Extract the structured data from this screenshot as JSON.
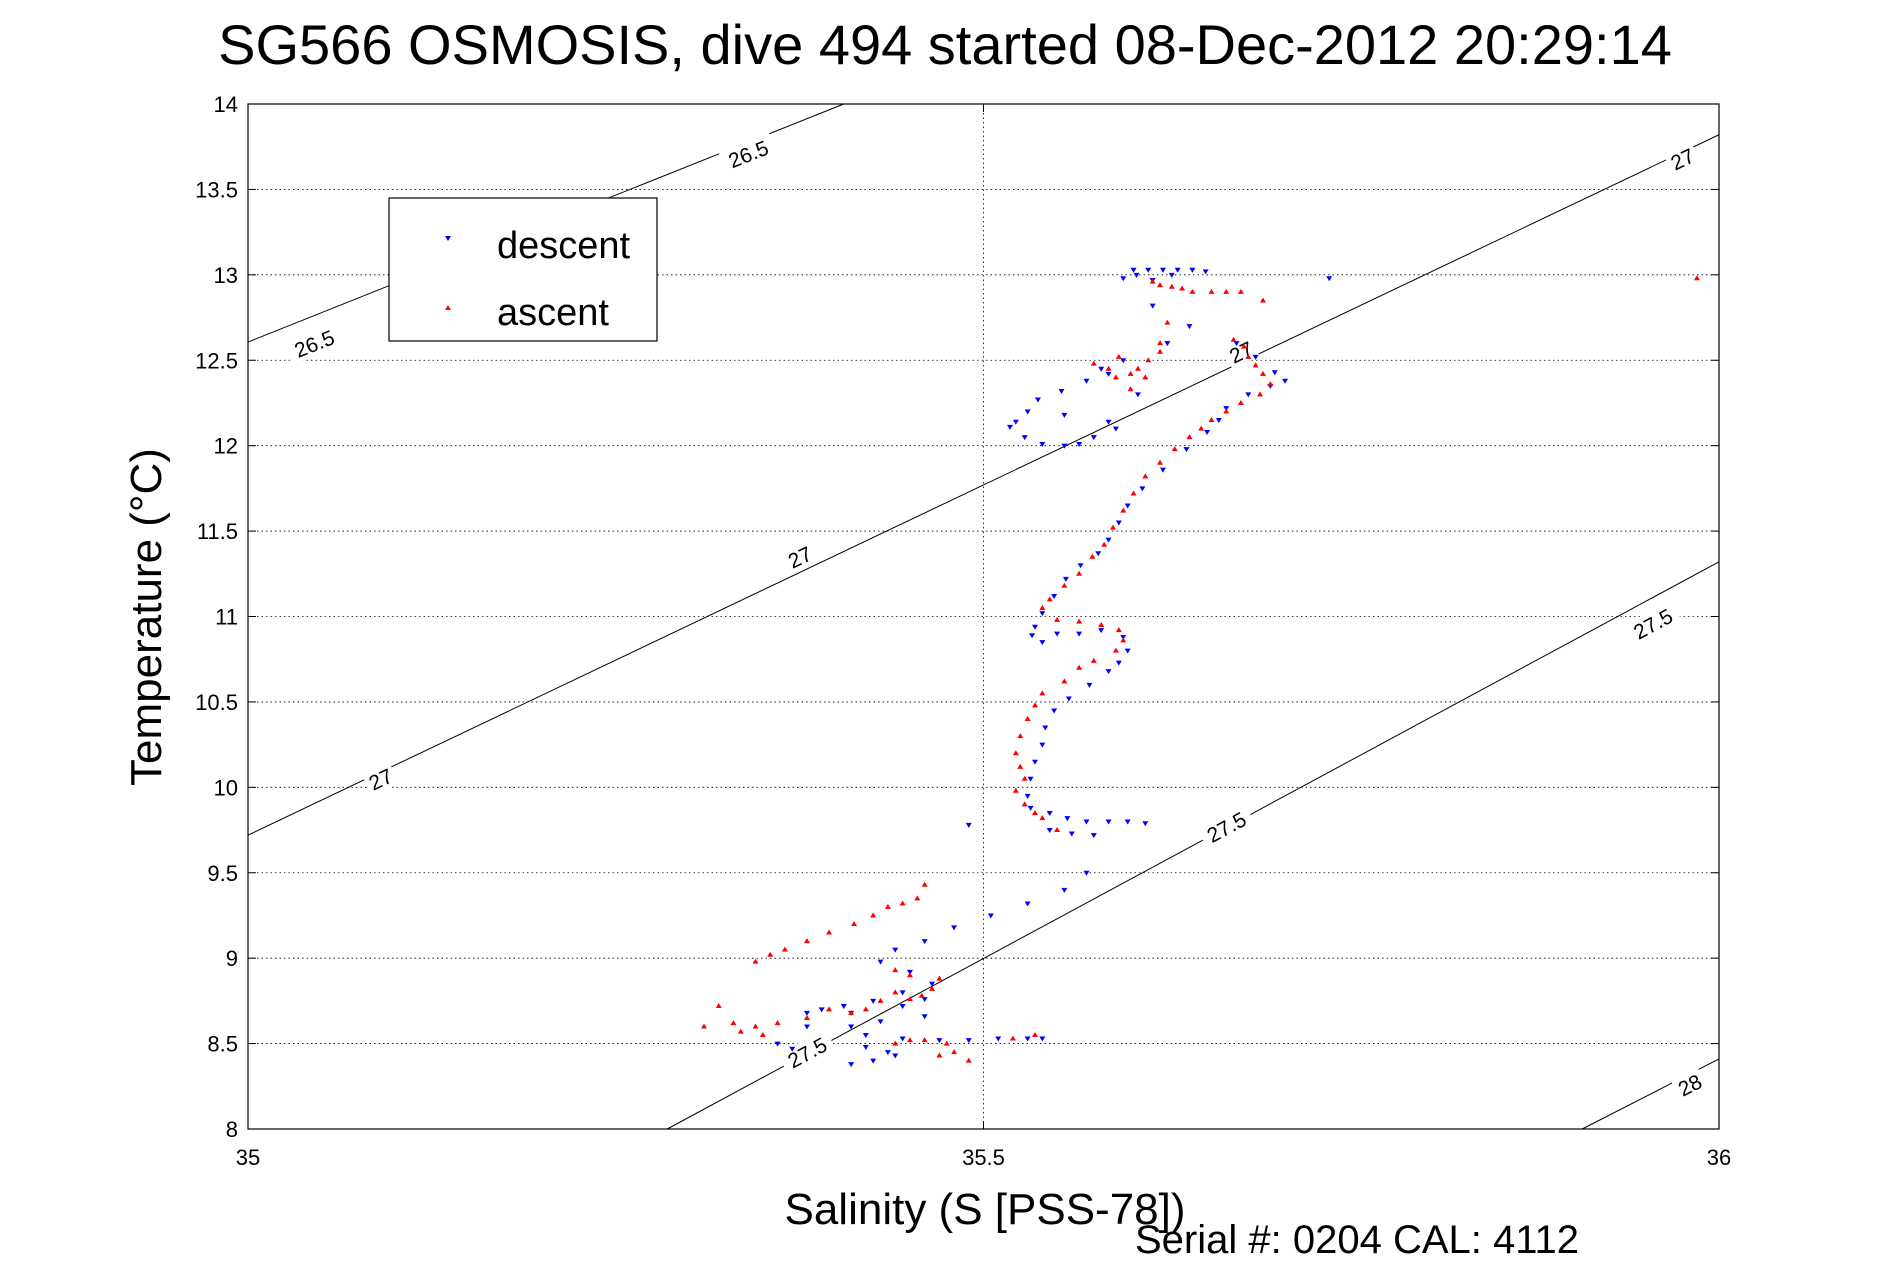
{
  "chart_data": {
    "type": "scatter",
    "title": "SG566 OSMOSIS, dive 494 started 08-Dec-2012 20:29:14",
    "xlabel": "Salinity (S [PSS-78])",
    "ylabel": "Temperature (°C)",
    "footer": "Serial #: 0204  CAL: 4112",
    "xlim": [
      35,
      36
    ],
    "ylim": [
      8,
      14
    ],
    "xticks": [
      "35",
      "35.5",
      "36"
    ],
    "yticks": [
      "8",
      "8.5",
      "9",
      "9.5",
      "10",
      "10.5",
      "11",
      "11.5",
      "12",
      "12.5",
      "13",
      "13.5",
      "14"
    ],
    "grid": true,
    "legend_position": "top-left",
    "contour_labels": [
      {
        "text": "26.5",
        "x": 35.34,
        "y": 13.71
      },
      {
        "text": "26.5",
        "x": 35.045,
        "y": 12.6
      },
      {
        "text": "27",
        "x": 34.09,
        "y": 10.05,
        "x_actual": 35.09
      },
      {
        "text": "27",
        "x": 35.375,
        "y": 11.35
      },
      {
        "text": "27",
        "x": 35.675,
        "y": 12.55
      },
      {
        "text": "27",
        "x": 35.975,
        "y": 13.68
      },
      {
        "text": "27.5",
        "x": 35.38,
        "y": 8.45
      },
      {
        "text": "27.5",
        "x": 35.665,
        "y": 9.77
      },
      {
        "text": "27.5",
        "x": 35.955,
        "y": 10.96
      },
      {
        "text": "28",
        "x": 35.98,
        "y": 8.26
      }
    ],
    "series": [
      {
        "name": "descent",
        "color": "#0000ff",
        "marker": "triangle-down",
        "points": [
          [
            35.602,
            13.03
          ],
          [
            35.612,
            13.03
          ],
          [
            35.622,
            13.03
          ],
          [
            35.632,
            13.03
          ],
          [
            35.642,
            13.03
          ],
          [
            35.651,
            13.02
          ],
          [
            35.604,
            13.0
          ],
          [
            35.628,
            13.0
          ],
          [
            35.595,
            12.98
          ],
          [
            35.615,
            12.97
          ],
          [
            35.735,
            12.98
          ],
          [
            35.615,
            12.82
          ],
          [
            35.64,
            12.7
          ],
          [
            35.625,
            12.6
          ],
          [
            35.58,
            12.45
          ],
          [
            35.595,
            12.5
          ],
          [
            35.585,
            12.42
          ],
          [
            35.57,
            12.38
          ],
          [
            35.553,
            12.32
          ],
          [
            35.537,
            12.27
          ],
          [
            35.53,
            12.2
          ],
          [
            35.522,
            12.14
          ],
          [
            35.518,
            12.11
          ],
          [
            35.528,
            12.05
          ],
          [
            35.54,
            12.01
          ],
          [
            35.555,
            12.0
          ],
          [
            35.565,
            12.01
          ],
          [
            35.575,
            12.05
          ],
          [
            35.59,
            12.1
          ],
          [
            35.585,
            12.14
          ],
          [
            35.555,
            12.18
          ],
          [
            35.605,
            12.3
          ],
          [
            35.672,
            12.6
          ],
          [
            35.685,
            12.52
          ],
          [
            35.698,
            12.43
          ],
          [
            35.705,
            12.38
          ],
          [
            35.695,
            12.35
          ],
          [
            35.68,
            12.3
          ],
          [
            35.665,
            12.22
          ],
          [
            35.66,
            12.15
          ],
          [
            35.652,
            12.08
          ],
          [
            35.638,
            11.98
          ],
          [
            35.622,
            11.86
          ],
          [
            35.608,
            11.75
          ],
          [
            35.598,
            11.65
          ],
          [
            35.592,
            11.55
          ],
          [
            35.585,
            11.45
          ],
          [
            35.578,
            11.37
          ],
          [
            35.566,
            11.3
          ],
          [
            35.556,
            11.22
          ],
          [
            35.548,
            11.12
          ],
          [
            35.54,
            11.02
          ],
          [
            35.535,
            10.94
          ],
          [
            35.533,
            10.89
          ],
          [
            35.54,
            10.85
          ],
          [
            35.55,
            10.9
          ],
          [
            35.565,
            10.9
          ],
          [
            35.58,
            10.92
          ],
          [
            35.595,
            10.88
          ],
          [
            35.598,
            10.8
          ],
          [
            35.592,
            10.73
          ],
          [
            35.585,
            10.68
          ],
          [
            35.572,
            10.6
          ],
          [
            35.558,
            10.52
          ],
          [
            35.548,
            10.45
          ],
          [
            35.542,
            10.35
          ],
          [
            35.54,
            10.25
          ],
          [
            35.535,
            10.15
          ],
          [
            35.532,
            10.05
          ],
          [
            35.53,
            9.95
          ],
          [
            35.532,
            9.88
          ],
          [
            35.545,
            9.85
          ],
          [
            35.557,
            9.82
          ],
          [
            35.57,
            9.8
          ],
          [
            35.585,
            9.8
          ],
          [
            35.598,
            9.8
          ],
          [
            35.61,
            9.79
          ],
          [
            35.545,
            9.75
          ],
          [
            35.56,
            9.73
          ],
          [
            35.575,
            9.72
          ],
          [
            35.49,
            9.78
          ],
          [
            35.57,
            9.5
          ],
          [
            35.555,
            9.4
          ],
          [
            35.53,
            9.32
          ],
          [
            35.505,
            9.25
          ],
          [
            35.48,
            9.18
          ],
          [
            35.46,
            9.1
          ],
          [
            35.44,
            9.05
          ],
          [
            35.43,
            8.98
          ],
          [
            35.45,
            8.92
          ],
          [
            35.465,
            8.85
          ],
          [
            35.445,
            8.8
          ],
          [
            35.425,
            8.75
          ],
          [
            35.405,
            8.72
          ],
          [
            35.39,
            8.7
          ],
          [
            35.38,
            8.68
          ],
          [
            35.41,
            8.68
          ],
          [
            35.445,
            8.72
          ],
          [
            35.46,
            8.76
          ],
          [
            35.46,
            8.66
          ],
          [
            35.43,
            8.63
          ],
          [
            35.41,
            8.6
          ],
          [
            35.42,
            8.55
          ],
          [
            35.445,
            8.53
          ],
          [
            35.47,
            8.52
          ],
          [
            35.49,
            8.52
          ],
          [
            35.51,
            8.53
          ],
          [
            35.53,
            8.53
          ],
          [
            35.54,
            8.53
          ],
          [
            35.42,
            8.48
          ],
          [
            35.435,
            8.45
          ],
          [
            35.44,
            8.43
          ],
          [
            35.425,
            8.4
          ],
          [
            35.41,
            8.38
          ],
          [
            35.37,
            8.47
          ],
          [
            35.36,
            8.5
          ],
          [
            35.38,
            8.6
          ]
        ]
      },
      {
        "name": "ascent",
        "color": "#ff0000",
        "marker": "triangle-up",
        "points": [
          [
            35.615,
            12.96
          ],
          [
            35.62,
            12.94
          ],
          [
            35.628,
            12.93
          ],
          [
            35.635,
            12.92
          ],
          [
            35.642,
            12.9
          ],
          [
            35.655,
            12.9
          ],
          [
            35.665,
            12.9
          ],
          [
            35.675,
            12.9
          ],
          [
            35.69,
            12.85
          ],
          [
            35.985,
            12.98
          ],
          [
            35.625,
            12.72
          ],
          [
            35.62,
            12.6
          ],
          [
            35.62,
            12.55
          ],
          [
            35.612,
            12.5
          ],
          [
            35.605,
            12.45
          ],
          [
            35.6,
            12.42
          ],
          [
            35.59,
            12.4
          ],
          [
            35.585,
            12.45
          ],
          [
            35.592,
            12.52
          ],
          [
            35.61,
            12.4
          ],
          [
            35.6,
            12.33
          ],
          [
            35.575,
            12.48
          ],
          [
            35.67,
            12.62
          ],
          [
            35.677,
            12.58
          ],
          [
            35.68,
            12.52
          ],
          [
            35.685,
            12.47
          ],
          [
            35.69,
            12.42
          ],
          [
            35.695,
            12.36
          ],
          [
            35.688,
            12.3
          ],
          [
            35.675,
            12.25
          ],
          [
            35.665,
            12.2
          ],
          [
            35.655,
            12.15
          ],
          [
            35.648,
            12.1
          ],
          [
            35.64,
            12.05
          ],
          [
            35.63,
            11.98
          ],
          [
            35.62,
            11.9
          ],
          [
            35.61,
            11.82
          ],
          [
            35.602,
            11.72
          ],
          [
            35.595,
            11.62
          ],
          [
            35.588,
            11.52
          ],
          [
            35.582,
            11.42
          ],
          [
            35.574,
            11.35
          ],
          [
            35.565,
            11.25
          ],
          [
            35.555,
            11.18
          ],
          [
            35.545,
            11.1
          ],
          [
            35.54,
            11.05
          ],
          [
            35.55,
            10.98
          ],
          [
            35.565,
            10.97
          ],
          [
            35.58,
            10.95
          ],
          [
            35.592,
            10.92
          ],
          [
            35.595,
            10.86
          ],
          [
            35.59,
            10.8
          ],
          [
            35.575,
            10.74
          ],
          [
            35.565,
            10.7
          ],
          [
            35.555,
            10.62
          ],
          [
            35.54,
            10.55
          ],
          [
            35.535,
            10.48
          ],
          [
            35.53,
            10.4
          ],
          [
            35.525,
            10.3
          ],
          [
            35.522,
            10.2
          ],
          [
            35.525,
            10.12
          ],
          [
            35.528,
            10.05
          ],
          [
            35.522,
            9.98
          ],
          [
            35.528,
            9.9
          ],
          [
            35.535,
            9.85
          ],
          [
            35.54,
            9.82
          ],
          [
            35.55,
            9.75
          ],
          [
            35.46,
            9.43
          ],
          [
            35.455,
            9.35
          ],
          [
            35.445,
            9.32
          ],
          [
            35.435,
            9.3
          ],
          [
            35.425,
            9.25
          ],
          [
            35.412,
            9.2
          ],
          [
            35.395,
            9.15
          ],
          [
            35.38,
            9.1
          ],
          [
            35.365,
            9.05
          ],
          [
            35.355,
            9.02
          ],
          [
            35.345,
            8.98
          ],
          [
            35.47,
            8.88
          ],
          [
            35.465,
            8.82
          ],
          [
            35.458,
            8.78
          ],
          [
            35.45,
            8.76
          ],
          [
            35.44,
            8.8
          ],
          [
            35.43,
            8.75
          ],
          [
            35.42,
            8.7
          ],
          [
            35.41,
            8.68
          ],
          [
            35.395,
            8.7
          ],
          [
            35.38,
            8.65
          ],
          [
            35.36,
            8.62
          ],
          [
            35.345,
            8.6
          ],
          [
            35.33,
            8.62
          ],
          [
            35.32,
            8.72
          ],
          [
            35.31,
            8.6
          ],
          [
            35.335,
            8.57
          ],
          [
            35.35,
            8.55
          ],
          [
            35.44,
            8.5
          ],
          [
            35.45,
            8.52
          ],
          [
            35.46,
            8.52
          ],
          [
            35.475,
            8.5
          ],
          [
            35.48,
            8.45
          ],
          [
            35.47,
            8.43
          ],
          [
            35.49,
            8.4
          ],
          [
            35.52,
            8.53
          ],
          [
            35.535,
            8.55
          ],
          [
            35.45,
            8.9
          ],
          [
            35.44,
            8.93
          ]
        ]
      }
    ],
    "isopycnals": [
      {
        "label": "26.5",
        "points": [
          [
            34.969,
            12.5
          ],
          [
            35.405,
            14.0
          ]
        ]
      },
      {
        "label": "27",
        "points": [
          [
            35.0,
            9.72
          ],
          [
            36.0,
            13.82
          ]
        ]
      },
      {
        "label": "27.5",
        "points": [
          [
            35.285,
            8.0
          ],
          [
            36.0,
            11.32
          ]
        ]
      },
      {
        "label": "28",
        "points": [
          [
            35.907,
            8.0
          ],
          [
            36.0,
            8.41
          ]
        ]
      }
    ]
  }
}
